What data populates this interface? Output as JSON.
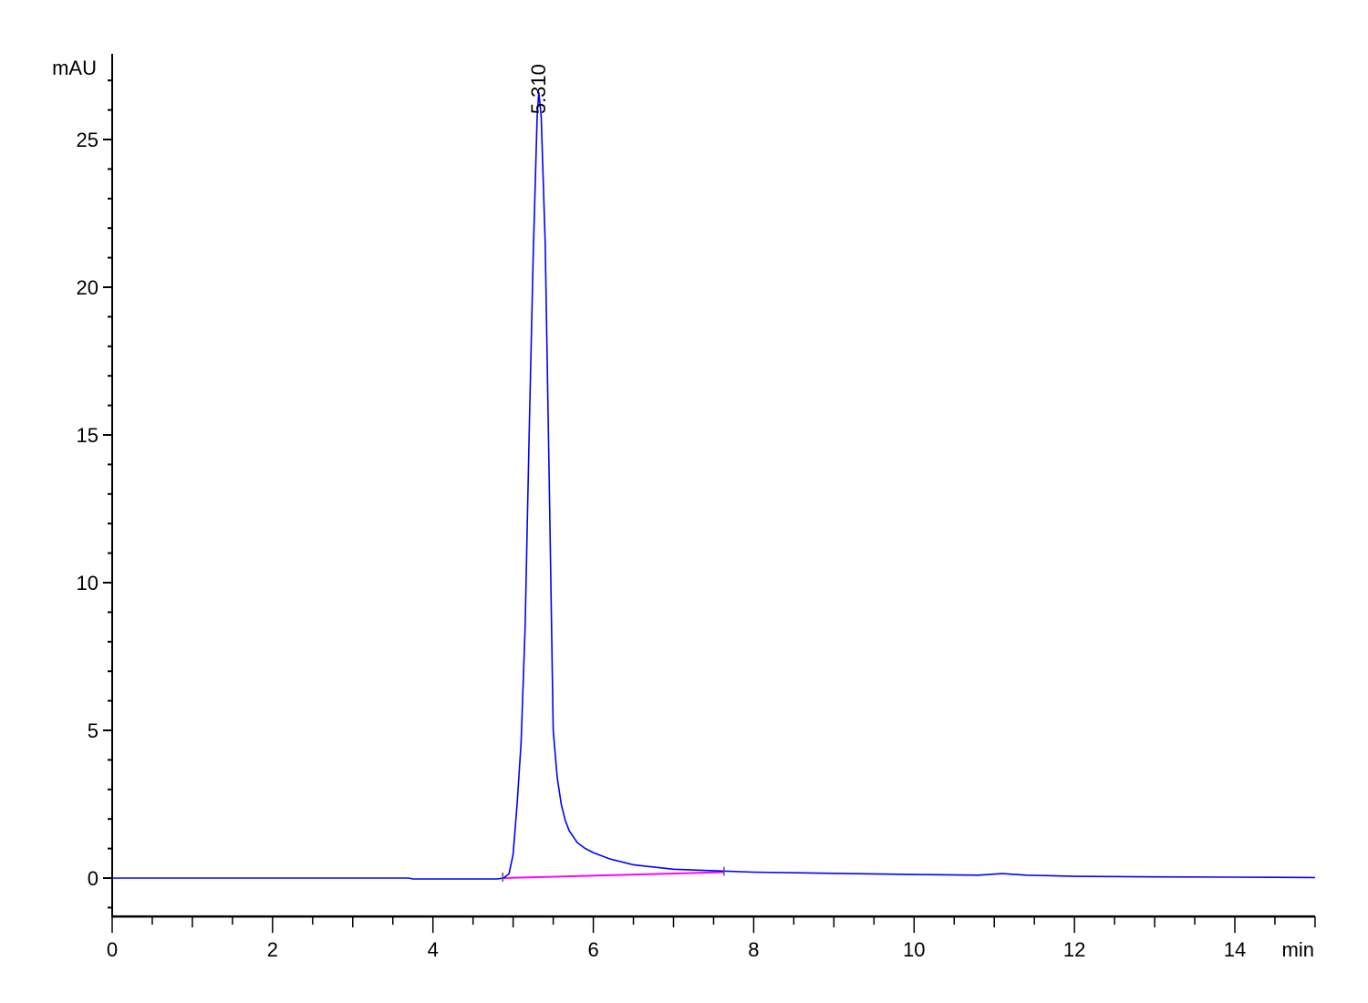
{
  "chart_data": {
    "type": "line",
    "title": "",
    "xlabel": "min",
    "ylabel": "mAU",
    "xlim": [
      0,
      15
    ],
    "ylim": [
      -1.3,
      27.9
    ],
    "x_ticks": [
      0,
      2,
      4,
      6,
      8,
      10,
      12,
      14
    ],
    "x_tick_labels": [
      "0",
      "2",
      "4",
      "6",
      "8",
      "10",
      "12",
      "14"
    ],
    "x_minor_step": 0.5,
    "y_ticks": [
      0,
      5,
      10,
      15,
      20,
      25
    ],
    "y_tick_labels": [
      "0",
      "5",
      "10",
      "15",
      "20",
      "25"
    ],
    "y_minor_step": 1,
    "grid": false,
    "colors": {
      "signal": "#0000ff",
      "baseline": "#ff00ff",
      "axis": "#000000"
    },
    "peak_annotations": [
      {
        "label": "5.310",
        "x": 5.31,
        "y": 26.6
      }
    ],
    "integration_baseline": [
      [
        4.87,
        0
      ],
      [
        7.63,
        0.2
      ]
    ],
    "series": [
      {
        "points": [
          [
            0,
            0
          ],
          [
            3.7,
            0
          ],
          [
            3.75,
            -0.03
          ],
          [
            4.8,
            -0.03
          ],
          [
            4.88,
            0
          ],
          [
            4.95,
            0.15
          ],
          [
            5.0,
            0.8
          ],
          [
            5.05,
            2.5
          ],
          [
            5.1,
            4.6
          ],
          [
            5.15,
            8.5
          ],
          [
            5.2,
            15
          ],
          [
            5.25,
            21
          ],
          [
            5.3,
            25.8
          ],
          [
            5.32,
            26.6
          ],
          [
            5.35,
            25.8
          ],
          [
            5.4,
            21.5
          ],
          [
            5.45,
            13.5
          ],
          [
            5.5,
            5
          ],
          [
            5.55,
            3.4
          ],
          [
            5.6,
            2.5
          ],
          [
            5.65,
            1.95
          ],
          [
            5.7,
            1.6
          ],
          [
            5.8,
            1.2
          ],
          [
            5.9,
            1.0
          ],
          [
            6.0,
            0.86
          ],
          [
            6.2,
            0.65
          ],
          [
            6.5,
            0.45
          ],
          [
            7.0,
            0.3
          ],
          [
            7.5,
            0.25
          ],
          [
            8.0,
            0.2
          ],
          [
            9.0,
            0.16
          ],
          [
            10.0,
            0.12
          ],
          [
            10.8,
            0.1
          ],
          [
            11.1,
            0.15
          ],
          [
            11.4,
            0.1
          ],
          [
            12.0,
            0.06
          ],
          [
            13.0,
            0.04
          ],
          [
            14.0,
            0.03
          ],
          [
            15.0,
            0.02
          ]
        ]
      }
    ]
  }
}
